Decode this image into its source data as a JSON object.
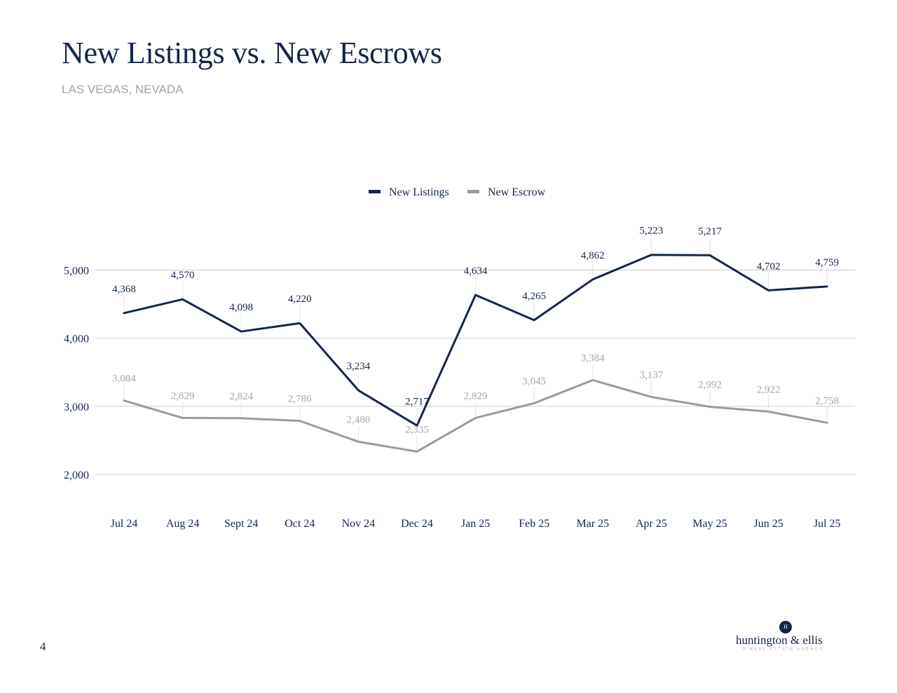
{
  "page": {
    "title": "New Listings vs. New Escrows",
    "subtitle": "LAS VEGAS, NEVADA",
    "page_number": "4"
  },
  "logo": {
    "mark": "H",
    "name": "huntington & ellis",
    "tagline": "A REAL ESTATE AGENCY"
  },
  "colors": {
    "new_listings": "#14264a",
    "new_escrow": "#9b9b9f",
    "gridline": "#d5d5d5",
    "label_text": "#14264a",
    "escrow_label_text": "#a6a6a6"
  },
  "chart_data": {
    "type": "line",
    "title": "",
    "xlabel": "",
    "ylabel": "",
    "legend_position": "top-center",
    "grid": true,
    "ylim": [
      2000,
      5000
    ],
    "yticks": [
      2000,
      3000,
      4000,
      5000
    ],
    "ytick_labels": [
      "2,000",
      "3,000",
      "4,000",
      "5,000"
    ],
    "categories": [
      "Jul 24",
      "Aug 24",
      "Sept 24",
      "Oct 24",
      "Nov 24",
      "Dec 24",
      "Jan 25",
      "Feb 25",
      "Mar 25",
      "Apr 25",
      "May 25",
      "Jun 25",
      "Jul 25"
    ],
    "series": [
      {
        "name": "New Listings",
        "values": [
          4368,
          4570,
          4098,
          4220,
          3234,
          2717,
          4634,
          4265,
          4862,
          5223,
          5217,
          4702,
          4759
        ],
        "labels": [
          "4,368",
          "4,570",
          "4,098",
          "4,220",
          "3,234",
          "2,717",
          "4,634",
          "4,265",
          "4,862",
          "5,223",
          "5,217",
          "4,702",
          "4,759"
        ]
      },
      {
        "name": "New Escrow",
        "values": [
          3084,
          2829,
          2824,
          2786,
          2480,
          2335,
          2829,
          3045,
          3384,
          3137,
          2992,
          2922,
          2758
        ],
        "labels": [
          "3,084",
          "2,829",
          "2,824",
          "2,786",
          "2,480",
          "2,335",
          "2,829",
          "3,045",
          "3,384",
          "3,137",
          "2,992",
          "2,922",
          "2,758"
        ]
      }
    ]
  }
}
